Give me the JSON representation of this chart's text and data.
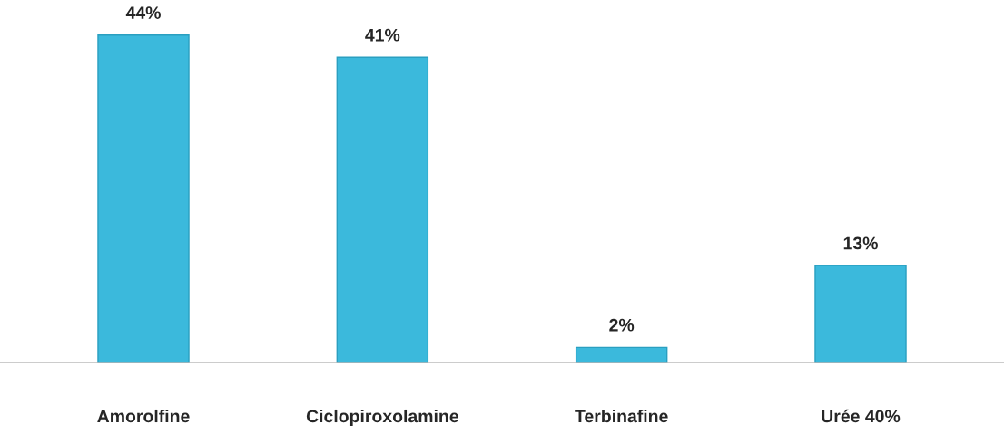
{
  "chart_data": {
    "type": "bar",
    "categories": [
      "Amorolfine",
      "Ciclopiroxolamine",
      "Terbinafine",
      "Urée 40%"
    ],
    "values": [
      44,
      41,
      2,
      13
    ],
    "value_labels": [
      "44%",
      "41%",
      "2%",
      "13%"
    ],
    "color": "#3bb9dc",
    "grid": false
  }
}
